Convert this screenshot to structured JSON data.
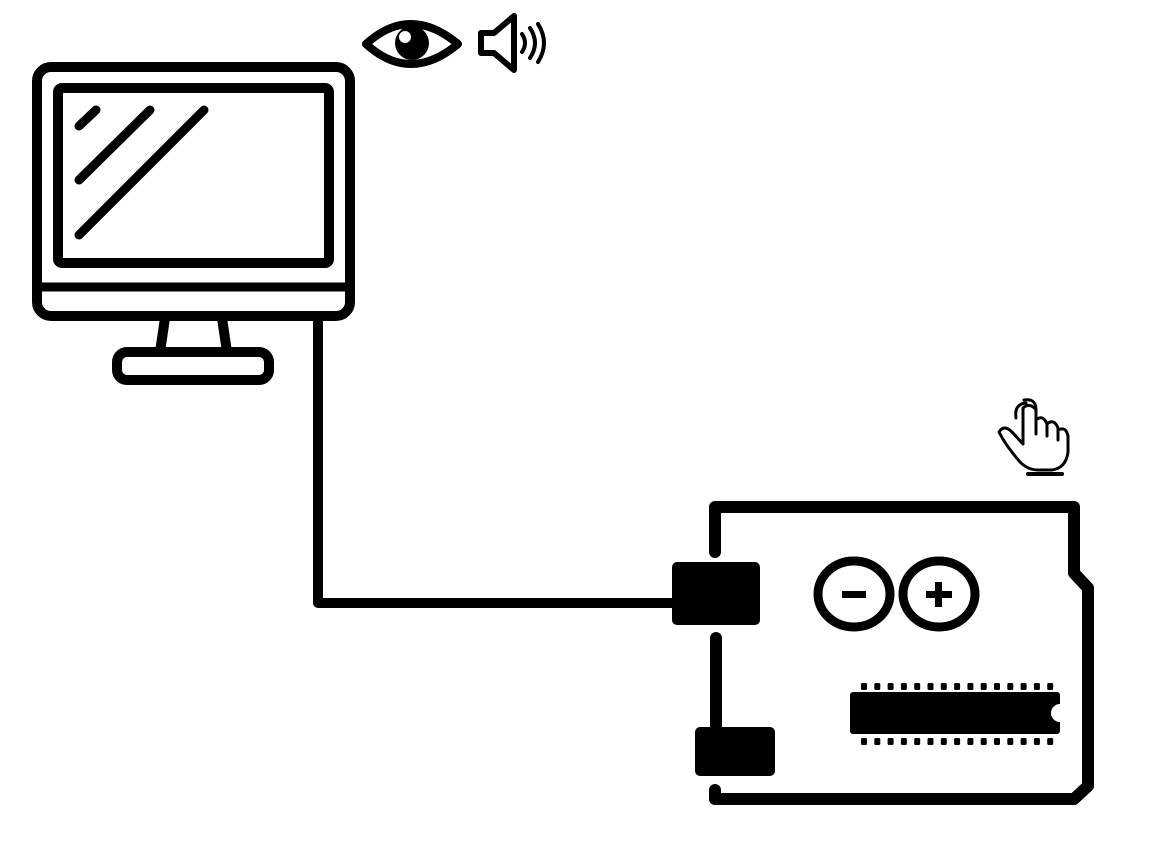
{
  "diagram": {
    "nodes": [
      {
        "id": "computer",
        "icon": "monitor-icon"
      },
      {
        "id": "microcontroller",
        "icon": "arduino-board-icon"
      }
    ],
    "edges": [
      {
        "from": "computer",
        "to": "microcontroller",
        "icon": "usb-cable"
      }
    ],
    "indicators": [
      {
        "attached_to": "computer",
        "icon": "eye-icon"
      },
      {
        "attached_to": "computer",
        "icon": "speaker-icon"
      },
      {
        "attached_to": "microcontroller",
        "icon": "hand-pointer-icon"
      }
    ],
    "colors": {
      "stroke": "#000000",
      "background": "#ffffff"
    }
  }
}
